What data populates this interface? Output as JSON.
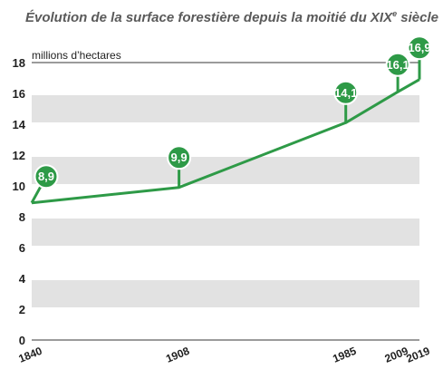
{
  "title": {
    "main": "Évolution de la surface forestière depuis la moitié du XIX",
    "sup": "e",
    "tail": " siècle"
  },
  "chart_data": {
    "type": "line",
    "title": "Évolution de la surface forestière depuis la moitié du XIXe siècle",
    "ylabel": "millions d’hectares",
    "xlabel": "",
    "x": [
      1840,
      1908,
      1985,
      2009,
      2019
    ],
    "x_tick_labels": [
      "1840",
      "1908",
      "1985",
      "2009",
      "2019"
    ],
    "series": [
      {
        "values": [
          8.9,
          9.9,
          14.1,
          16.1,
          16.9
        ]
      }
    ],
    "data_labels": [
      "8,9",
      "9,9",
      "14,1",
      "16,1",
      "16,9"
    ],
    "ylim": [
      0,
      18
    ],
    "y_ticks": [
      0,
      2,
      4,
      6,
      8,
      10,
      12,
      14,
      16,
      18
    ],
    "grid": "alternating horizontal bands",
    "legend": "none",
    "colors": {
      "line": "#2e9a47",
      "band": "#e2e2e2",
      "axis": "#7a7a7a",
      "title": "#5a5a5a"
    }
  }
}
